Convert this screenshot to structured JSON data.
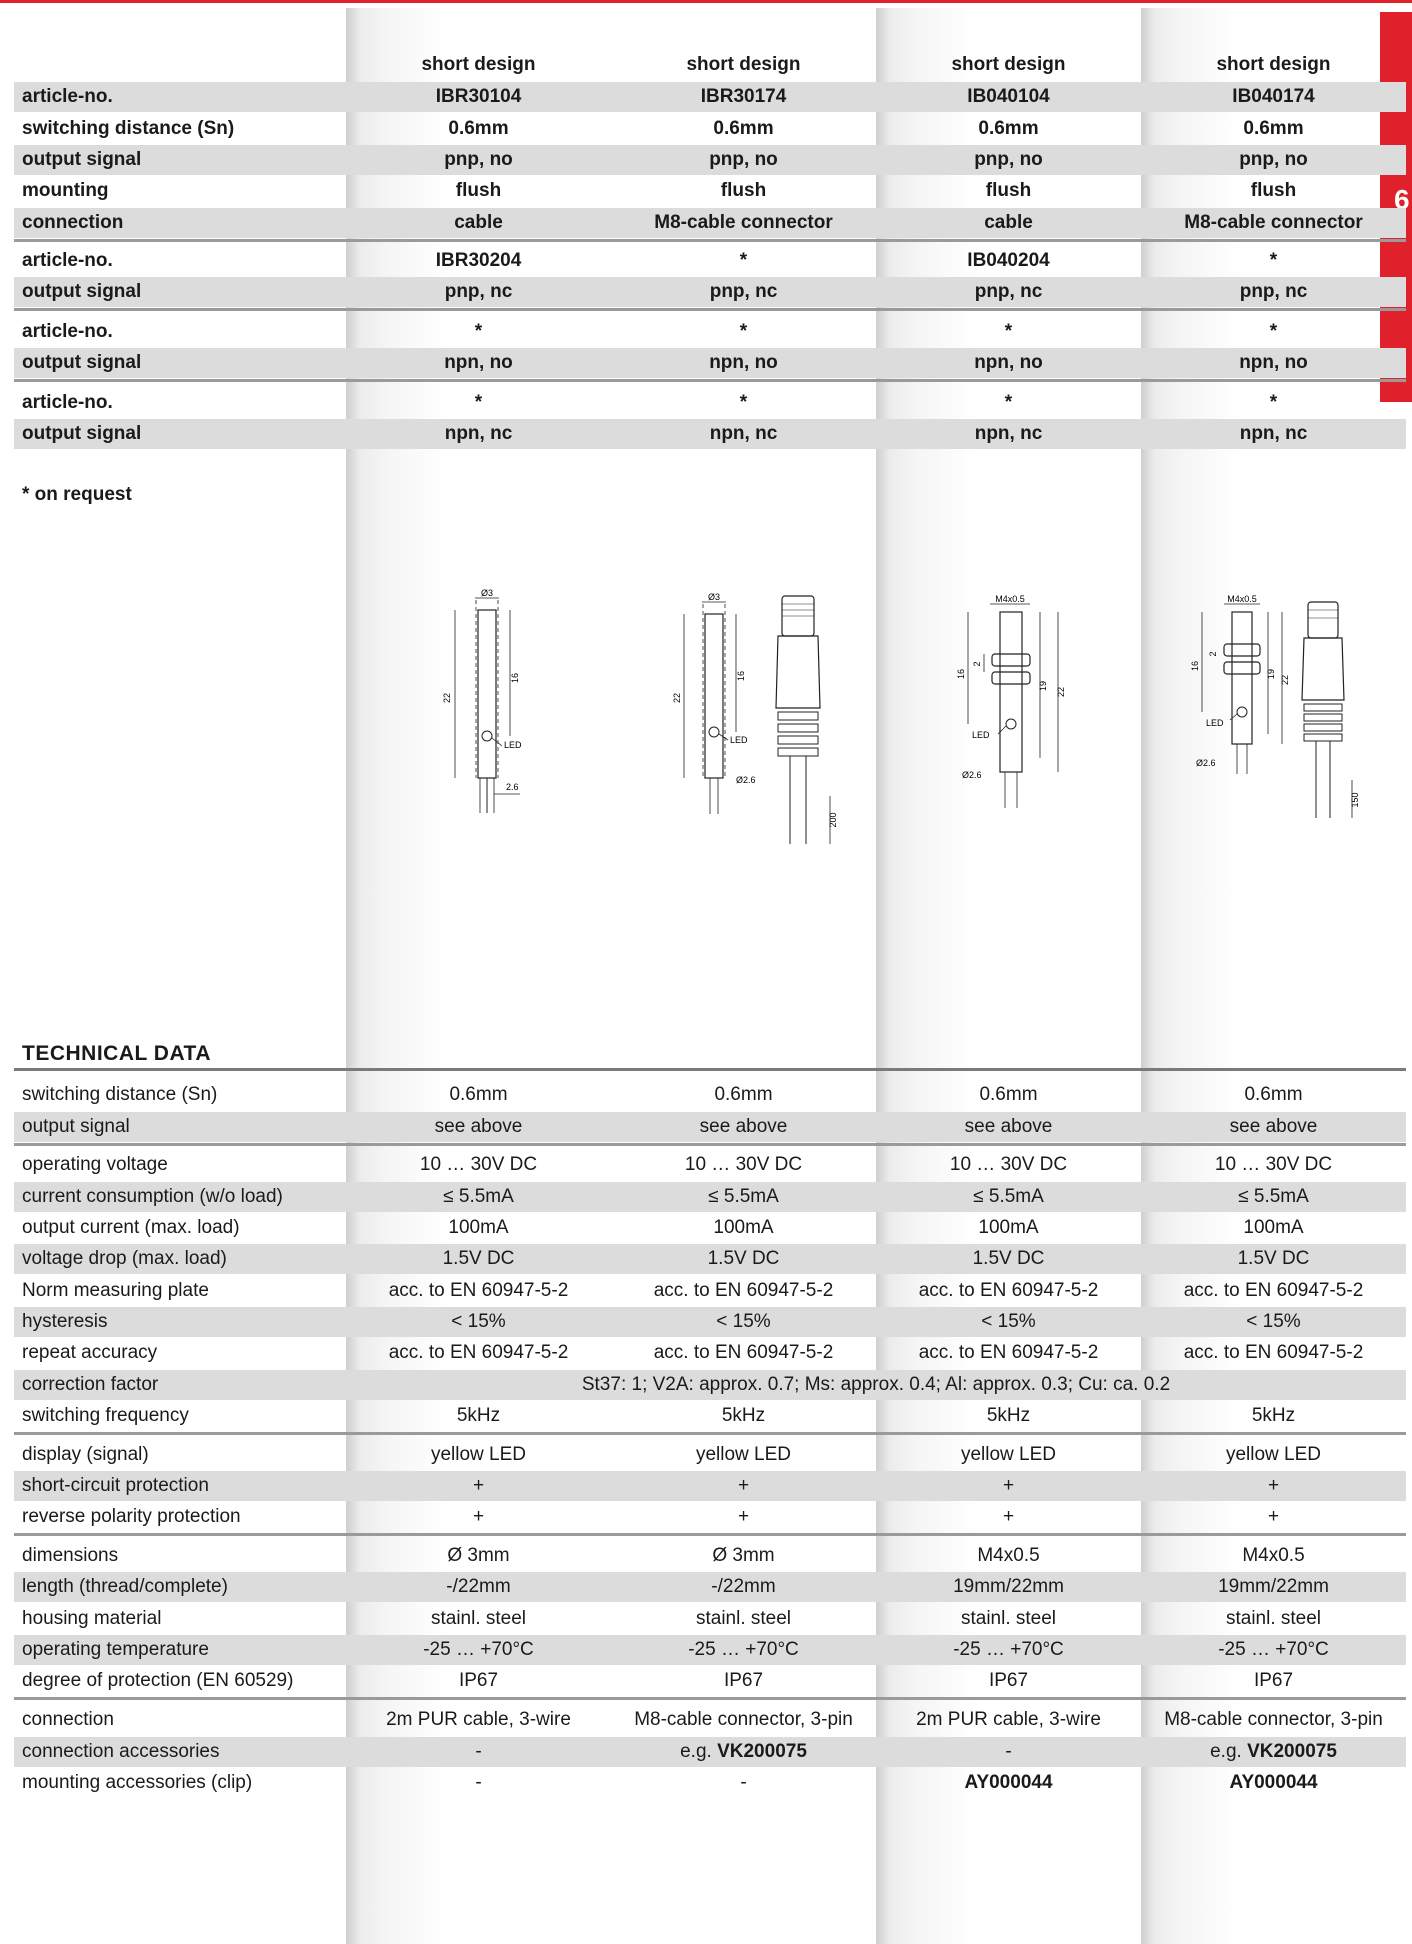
{
  "page_number": "6",
  "design_headers": [
    "short design",
    "short design",
    "short design",
    "short design"
  ],
  "variants": [
    {
      "label": "article-no.",
      "values": [
        "IBR30104",
        "IBR30174",
        "IB040104",
        "IB040174"
      ]
    },
    {
      "label": "switching distance (Sn)",
      "values": [
        "0.6mm",
        "0.6mm",
        "0.6mm",
        "0.6mm"
      ]
    },
    {
      "label": "output signal",
      "values": [
        "pnp, no",
        "pnp, no",
        "pnp, no",
        "pnp, no"
      ]
    },
    {
      "label": "mounting",
      "values": [
        "flush",
        "flush",
        "flush",
        "flush"
      ]
    },
    {
      "label": "connection",
      "values": [
        "cable",
        "M8-cable connector",
        "cable",
        "M8-cable connector"
      ]
    },
    {
      "label": "article-no.",
      "values": [
        "IBR30204",
        "*",
        "IB040204",
        "*"
      ]
    },
    {
      "label": "output signal",
      "values": [
        "pnp, nc",
        "pnp, nc",
        "pnp, nc",
        "pnp, nc"
      ]
    },
    {
      "label": "article-no.",
      "values": [
        "*",
        "*",
        "*",
        "*"
      ]
    },
    {
      "label": "output signal",
      "values": [
        "npn, no",
        "npn, no",
        "npn, no",
        "npn, no"
      ]
    },
    {
      "label": "article-no.",
      "values": [
        "*",
        "*",
        "*",
        "*"
      ]
    },
    {
      "label": "output signal",
      "values": [
        "npn, nc",
        "npn, nc",
        "npn, nc",
        "npn, nc"
      ]
    }
  ],
  "note": "* on request",
  "drawing_labels": {
    "d3": "Ø3",
    "len22": "22",
    "len16": "16",
    "led": "LED",
    "d26": "2.6",
    "d26b": "Ø2.6",
    "thread": "M4x0.5",
    "len2": "2",
    "len19": "19",
    "cable200": "200",
    "cable150": "150"
  },
  "section_title": "TECHNICAL DATA",
  "technical": [
    {
      "label": "switching distance (Sn)",
      "values": [
        "0.6mm",
        "0.6mm",
        "0.6mm",
        "0.6mm"
      ]
    },
    {
      "label": "output signal",
      "values": [
        "see above",
        "see above",
        "see above",
        "see above"
      ]
    },
    {
      "label": "operating voltage",
      "values": [
        "10 … 30V DC",
        "10 … 30V DC",
        "10 … 30V DC",
        "10 … 30V DC"
      ]
    },
    {
      "label": "current consumption (w/o load)",
      "values": [
        "≤ 5.5mA",
        "≤ 5.5mA",
        "≤ 5.5mA",
        "≤ 5.5mA"
      ]
    },
    {
      "label": "output current (max. load)",
      "values": [
        "100mA",
        "100mA",
        "100mA",
        "100mA"
      ]
    },
    {
      "label": "voltage drop (max. load)",
      "values": [
        "1.5V DC",
        "1.5V DC",
        "1.5V DC",
        "1.5V DC"
      ]
    },
    {
      "label": "Norm measuring plate",
      "values": [
        "acc. to EN 60947-5-2",
        "acc. to EN 60947-5-2",
        "acc. to EN 60947-5-2",
        "acc. to EN 60947-5-2"
      ]
    },
    {
      "label": "hysteresis",
      "values": [
        "< 15%",
        "< 15%",
        "< 15%",
        "< 15%"
      ]
    },
    {
      "label": "repeat accuracy",
      "values": [
        "acc. to EN 60947-5-2",
        "acc. to EN 60947-5-2",
        "acc. to EN 60947-5-2",
        "acc. to EN 60947-5-2"
      ]
    },
    {
      "label": "correction factor",
      "span": "St37: 1; V2A: approx. 0.7; Ms: approx. 0.4; Al: approx. 0.3; Cu: ca. 0.2"
    },
    {
      "label": "switching frequency",
      "values": [
        "5kHz",
        "5kHz",
        "5kHz",
        "5kHz"
      ]
    },
    {
      "label": "display (signal)",
      "values": [
        "yellow LED",
        "yellow LED",
        "yellow LED",
        "yellow LED"
      ]
    },
    {
      "label": "short-circuit protection",
      "values": [
        "+",
        "+",
        "+",
        "+"
      ]
    },
    {
      "label": "reverse polarity protection",
      "values": [
        "+",
        "+",
        "+",
        "+"
      ]
    },
    {
      "label": "dimensions",
      "values": [
        "Ø 3mm",
        "Ø 3mm",
        "M4x0.5",
        "M4x0.5"
      ]
    },
    {
      "label": "length (thread/complete)",
      "values": [
        "-/22mm",
        "-/22mm",
        "19mm/22mm",
        "19mm/22mm"
      ]
    },
    {
      "label": "housing material",
      "values": [
        "stainl. steel",
        "stainl. steel",
        "stainl. steel",
        "stainl. steel"
      ]
    },
    {
      "label": "operating temperature",
      "values": [
        "-25 … +70°C",
        "-25 … +70°C",
        "-25 … +70°C",
        "-25 … +70°C"
      ]
    },
    {
      "label": "degree of protection (EN 60529)",
      "values": [
        "IP67",
        "IP67",
        "IP67",
        "IP67"
      ]
    },
    {
      "label": "connection",
      "values": [
        "2m PUR cable, 3-wire",
        "M8-cable connector, 3-pin",
        "2m PUR cable, 3-wire",
        "M8-cable connector, 3-pin"
      ]
    },
    {
      "label": "connection accessories",
      "values": [
        "-",
        "e.g. |VK200075",
        "-",
        "e.g. |VK200075"
      ]
    },
    {
      "label": "mounting accessories (clip)",
      "values": [
        "-",
        "-",
        "|AY000044",
        "|AY000044"
      ]
    }
  ]
}
